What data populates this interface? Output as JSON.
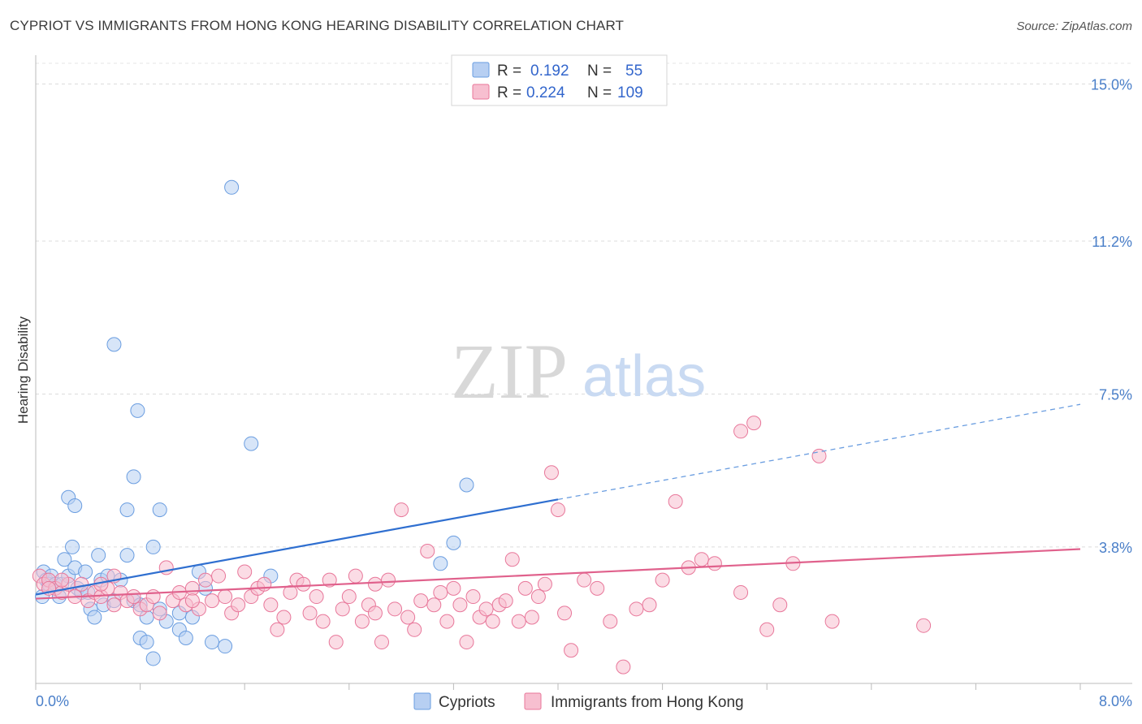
{
  "title": "CYPRIOT VS IMMIGRANTS FROM HONG KONG HEARING DISABILITY CORRELATION CHART",
  "source": "Source: ZipAtlas.com",
  "watermark": {
    "zip": "ZIP",
    "atlas": "atlas"
  },
  "chart_data": {
    "type": "scatter",
    "ylabel": "Hearing Disability",
    "xlabel": "",
    "xlim": [
      0,
      8
    ],
    "ylim": [
      0.5,
      15.5
    ],
    "x_tick_labels": [
      "0.0%",
      "8.0%"
    ],
    "y_ticks": [
      3.8,
      7.5,
      11.2,
      15.0
    ],
    "y_tick_labels": [
      "3.8%",
      "7.5%",
      "11.2%",
      "15.0%"
    ],
    "grid": true,
    "legend_position": "top-center",
    "stats": [
      {
        "r_label": "R =",
        "r": "0.192",
        "n_label": "N =",
        "n": "55"
      },
      {
        "r_label": "R =",
        "r": "0.224",
        "n_label": "N =",
        "n": "109"
      }
    ],
    "series": [
      {
        "name": "Cypriots",
        "color": "#6a9de0",
        "fill": "#b7cff2",
        "trend": {
          "x0": 0.0,
          "y0": 2.65,
          "x1": 4.0,
          "y1": 4.95,
          "dash_to_x": 8.0,
          "dash_to_y": 7.25
        },
        "points": [
          [
            0.05,
            2.6
          ],
          [
            0.06,
            3.2
          ],
          [
            0.08,
            3.0
          ],
          [
            0.1,
            2.9
          ],
          [
            0.12,
            3.1
          ],
          [
            0.15,
            2.9
          ],
          [
            0.18,
            2.6
          ],
          [
            0.2,
            2.9
          ],
          [
            0.22,
            3.5
          ],
          [
            0.25,
            3.1
          ],
          [
            0.28,
            3.8
          ],
          [
            0.3,
            3.3
          ],
          [
            0.32,
            2.8
          ],
          [
            0.35,
            2.7
          ],
          [
            0.38,
            3.2
          ],
          [
            0.4,
            2.7
          ],
          [
            0.42,
            2.3
          ],
          [
            0.45,
            2.1
          ],
          [
            0.48,
            3.6
          ],
          [
            0.5,
            3.0
          ],
          [
            0.52,
            2.4
          ],
          [
            0.55,
            3.1
          ],
          [
            0.6,
            2.5
          ],
          [
            0.65,
            3.0
          ],
          [
            0.7,
            3.6
          ],
          [
            0.75,
            2.5
          ],
          [
            0.8,
            2.4
          ],
          [
            0.85,
            2.1
          ],
          [
            0.9,
            3.8
          ],
          [
            0.95,
            2.3
          ],
          [
            0.25,
            5.0
          ],
          [
            0.3,
            4.8
          ],
          [
            0.6,
            8.7
          ],
          [
            0.7,
            4.7
          ],
          [
            0.75,
            5.5
          ],
          [
            0.8,
            1.6
          ],
          [
            0.85,
            1.5
          ],
          [
            0.9,
            1.1
          ],
          [
            0.95,
            4.7
          ],
          [
            0.78,
            7.1
          ],
          [
            1.0,
            2.0
          ],
          [
            1.1,
            1.8
          ],
          [
            1.15,
            1.6
          ],
          [
            1.2,
            2.1
          ],
          [
            1.25,
            3.2
          ],
          [
            1.3,
            2.8
          ],
          [
            1.35,
            1.5
          ],
          [
            1.1,
            2.2
          ],
          [
            1.45,
            1.4
          ],
          [
            1.5,
            12.5
          ],
          [
            1.65,
            6.3
          ],
          [
            1.8,
            3.1
          ],
          [
            3.1,
            3.4
          ],
          [
            3.2,
            3.9
          ],
          [
            3.3,
            5.3
          ]
        ]
      },
      {
        "name": "Immigrants from Hong Kong",
        "color": "#e8779a",
        "fill": "#f7bfd0",
        "trend": {
          "x0": 0.0,
          "y0": 2.55,
          "x1": 8.0,
          "y1": 3.75
        },
        "points": [
          [
            0.03,
            3.1
          ],
          [
            0.06,
            2.9
          ],
          [
            0.1,
            3.0
          ],
          [
            0.15,
            2.8
          ],
          [
            0.2,
            2.7
          ],
          [
            0.25,
            2.9
          ],
          [
            0.3,
            2.6
          ],
          [
            0.35,
            2.9
          ],
          [
            0.4,
            2.5
          ],
          [
            0.45,
            2.7
          ],
          [
            0.5,
            2.6
          ],
          [
            0.55,
            2.8
          ],
          [
            0.6,
            2.4
          ],
          [
            0.65,
            2.7
          ],
          [
            0.7,
            2.5
          ],
          [
            0.75,
            2.6
          ],
          [
            0.8,
            2.3
          ],
          [
            0.85,
            2.4
          ],
          [
            0.9,
            2.6
          ],
          [
            0.95,
            2.2
          ],
          [
            1.0,
            3.3
          ],
          [
            1.05,
            2.5
          ],
          [
            1.1,
            2.7
          ],
          [
            1.15,
            2.4
          ],
          [
            1.2,
            2.8
          ],
          [
            1.25,
            2.3
          ],
          [
            1.3,
            3.0
          ],
          [
            1.35,
            2.5
          ],
          [
            1.4,
            3.1
          ],
          [
            1.45,
            2.6
          ],
          [
            1.5,
            2.2
          ],
          [
            1.55,
            2.4
          ],
          [
            1.6,
            3.2
          ],
          [
            1.65,
            2.6
          ],
          [
            1.7,
            2.8
          ],
          [
            1.75,
            2.9
          ],
          [
            1.8,
            2.4
          ],
          [
            1.85,
            1.8
          ],
          [
            1.9,
            2.1
          ],
          [
            1.95,
            2.7
          ],
          [
            2.0,
            3.0
          ],
          [
            2.05,
            2.9
          ],
          [
            2.1,
            2.2
          ],
          [
            2.15,
            2.6
          ],
          [
            2.2,
            2.0
          ],
          [
            2.25,
            3.0
          ],
          [
            2.3,
            1.5
          ],
          [
            2.35,
            2.3
          ],
          [
            2.4,
            2.6
          ],
          [
            2.45,
            3.1
          ],
          [
            2.5,
            2.0
          ],
          [
            2.55,
            2.4
          ],
          [
            2.6,
            2.9
          ],
          [
            2.65,
            1.5
          ],
          [
            2.7,
            3.0
          ],
          [
            2.75,
            2.3
          ],
          [
            2.8,
            4.7
          ],
          [
            2.85,
            2.1
          ],
          [
            2.9,
            1.8
          ],
          [
            2.95,
            2.5
          ],
          [
            3.0,
            3.7
          ],
          [
            3.05,
            2.4
          ],
          [
            3.1,
            2.7
          ],
          [
            3.15,
            2.0
          ],
          [
            3.2,
            2.8
          ],
          [
            3.25,
            2.4
          ],
          [
            3.3,
            1.5
          ],
          [
            3.35,
            2.6
          ],
          [
            3.4,
            2.1
          ],
          [
            3.45,
            2.3
          ],
          [
            3.5,
            2.0
          ],
          [
            3.55,
            2.4
          ],
          [
            3.6,
            2.5
          ],
          [
            3.65,
            3.5
          ],
          [
            3.7,
            2.0
          ],
          [
            3.75,
            2.8
          ],
          [
            3.8,
            2.1
          ],
          [
            3.85,
            2.6
          ],
          [
            3.9,
            2.9
          ],
          [
            3.95,
            5.6
          ],
          [
            4.0,
            4.7
          ],
          [
            4.05,
            2.2
          ],
          [
            4.1,
            1.3
          ],
          [
            4.2,
            3.0
          ],
          [
            4.3,
            2.8
          ],
          [
            4.4,
            2.0
          ],
          [
            4.5,
            0.9
          ],
          [
            4.6,
            2.3
          ],
          [
            4.7,
            2.4
          ],
          [
            4.8,
            3.0
          ],
          [
            4.9,
            4.9
          ],
          [
            5.0,
            3.3
          ],
          [
            5.1,
            3.5
          ],
          [
            5.2,
            3.4
          ],
          [
            5.4,
            2.7
          ],
          [
            5.5,
            6.8
          ],
          [
            5.6,
            1.8
          ],
          [
            5.7,
            2.4
          ],
          [
            5.8,
            3.4
          ],
          [
            6.0,
            6.0
          ],
          [
            5.4,
            6.6
          ],
          [
            6.1,
            2.0
          ],
          [
            6.8,
            1.9
          ],
          [
            0.1,
            2.8
          ],
          [
            0.2,
            3.0
          ],
          [
            0.5,
            2.9
          ],
          [
            0.6,
            3.1
          ],
          [
            1.2,
            2.5
          ],
          [
            2.6,
            2.2
          ]
        ]
      }
    ]
  },
  "legend": {
    "items": [
      {
        "label": "Cypriots"
      },
      {
        "label": "Immigrants from Hong Kong"
      }
    ]
  }
}
